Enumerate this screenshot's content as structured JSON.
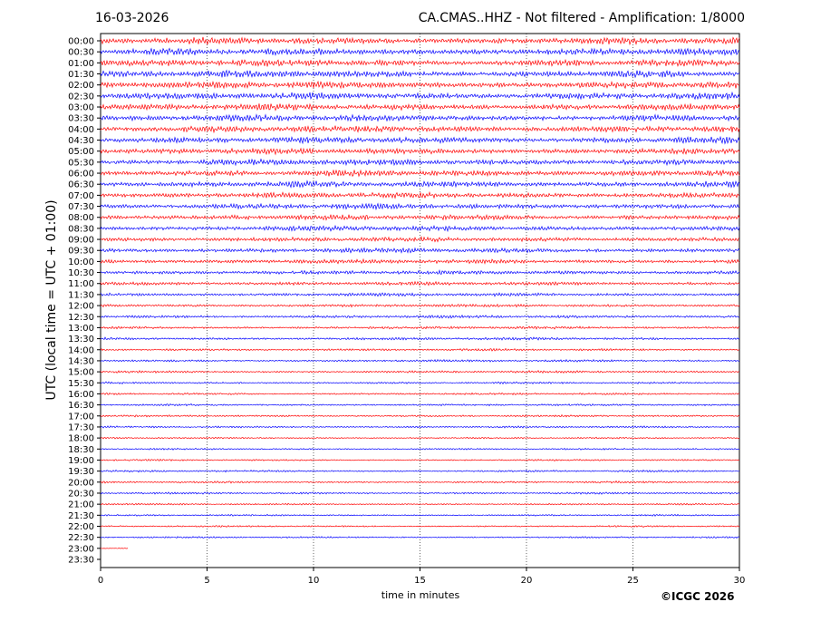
{
  "header": {
    "date": "16-03-2026",
    "title": "CA.CMAS..HHZ - Not filtered - Amplification: 1/8000"
  },
  "footer": {
    "copyright": "©ICGC 2026"
  },
  "chart_data": {
    "type": "line",
    "title": "CA.CMAS..HHZ - Not filtered - Amplification: 1/8000",
    "xlabel": "time in minutes",
    "ylabel": "UTC (local time = UTC + 01:00)",
    "xlim": [
      0,
      30
    ],
    "xticks": [
      "0",
      "5",
      "10",
      "15",
      "20",
      "25",
      "30"
    ],
    "xgrid": "dotted vertical at each x tick",
    "row_labels": [
      "00:00",
      "00:30",
      "01:00",
      "01:30",
      "02:00",
      "02:30",
      "03:00",
      "03:30",
      "04:00",
      "04:30",
      "05:00",
      "05:30",
      "06:00",
      "06:30",
      "07:00",
      "07:30",
      "08:00",
      "08:30",
      "09:00",
      "09:30",
      "10:00",
      "10:30",
      "11:00",
      "11:30",
      "12:00",
      "12:30",
      "13:00",
      "13:30",
      "14:00",
      "14:30",
      "15:00",
      "15:30",
      "16:00",
      "16:30",
      "17:00",
      "17:30",
      "18:00",
      "18:30",
      "19:00",
      "19:30",
      "20:00",
      "20:30",
      "21:00",
      "21:30",
      "22:00",
      "22:30",
      "23:00",
      "23:30"
    ],
    "trace_colors": [
      "#ff0000",
      "#0000ff"
    ],
    "trace_relative_amplitude": [
      1.0,
      1.0,
      1.0,
      1.0,
      1.0,
      1.0,
      0.95,
      0.95,
      0.95,
      0.95,
      0.9,
      0.9,
      0.9,
      0.9,
      0.85,
      0.8,
      0.8,
      0.75,
      0.7,
      0.7,
      0.65,
      0.6,
      0.55,
      0.5,
      0.45,
      0.45,
      0.4,
      0.4,
      0.35,
      0.35,
      0.35,
      0.3,
      0.3,
      0.3,
      0.3,
      0.3,
      0.25,
      0.25,
      0.25,
      0.3,
      0.3,
      0.3,
      0.25,
      0.25,
      0.25,
      0.25,
      0.1,
      0
    ],
    "trace_end_minute": [
      30,
      30,
      30,
      30,
      30,
      30,
      30,
      30,
      30,
      30,
      30,
      30,
      30,
      30,
      30,
      30,
      30,
      30,
      30,
      30,
      30,
      30,
      30,
      30,
      30,
      30,
      30,
      30,
      30,
      30,
      30,
      30,
      30,
      30,
      30,
      30,
      30,
      30,
      30,
      30,
      30,
      30,
      30,
      30,
      30,
      30,
      1.3,
      0
    ]
  }
}
